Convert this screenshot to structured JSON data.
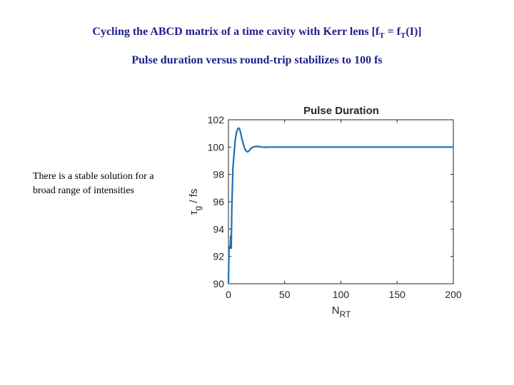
{
  "slide": {
    "title_prefix": "Cycling the ABCD matrix of a time cavity with Kerr lens [f",
    "title_sub1": "T",
    "title_mid": " = f",
    "title_sub2": "T",
    "title_suffix": "(I)]",
    "subtitle": "Pulse duration versus round-trip stabilizes to 100 fs",
    "note": "There is a stable solution for a broad range of intensities"
  },
  "colors": {
    "title": "#1f1f8f",
    "line": "#1f6fb0",
    "axis": "#262626"
  },
  "chart_data": {
    "type": "line",
    "title": "Pulse Duration",
    "xlabel_main": "N",
    "xlabel_sub": "RT",
    "ylabel_main": "τ",
    "ylabel_sub": "g",
    "ylabel_suffix": " / fs",
    "xlim": [
      0,
      200
    ],
    "ylim": [
      90,
      102
    ],
    "xticks": [
      0,
      50,
      100,
      150,
      200
    ],
    "yticks": [
      90,
      92,
      94,
      96,
      98,
      100,
      102
    ],
    "grid": false,
    "series": [
      {
        "x": [
          0,
          0.5,
          1,
          1.5,
          2,
          2.5,
          3,
          4,
          5,
          6,
          7,
          8,
          9,
          10,
          11,
          12,
          13,
          14,
          15,
          16,
          17,
          18,
          19,
          20,
          22,
          24,
          26,
          28,
          30,
          32,
          35,
          38,
          42,
          50,
          60,
          80,
          100,
          120,
          150,
          180,
          200
        ],
        "y": [
          90.0,
          92.5,
          92.7,
          92.6,
          93.5,
          92.6,
          95.5,
          98.5,
          99.5,
          100.5,
          101.0,
          101.3,
          101.4,
          101.3,
          101.0,
          100.6,
          100.3,
          100.0,
          99.8,
          99.7,
          99.65,
          99.7,
          99.8,
          99.9,
          100.0,
          100.05,
          100.05,
          100.02,
          100.0,
          99.99,
          100.0,
          100.0,
          100.0,
          100.0,
          100.0,
          100.0,
          100.0,
          100.0,
          100.0,
          100.0,
          100.0
        ]
      }
    ]
  }
}
